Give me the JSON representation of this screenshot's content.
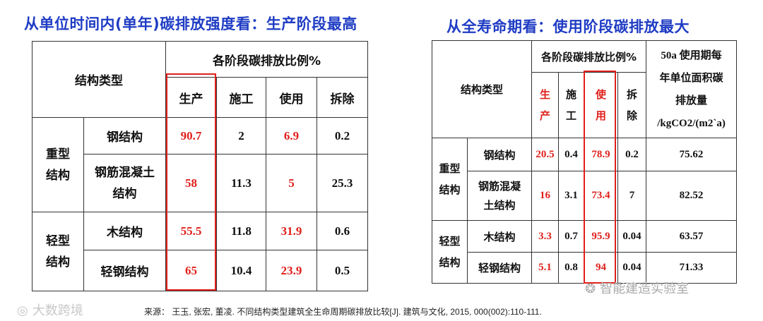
{
  "title_left": "从单位时间内(单年)碳排放强度看：生产阶段最高",
  "title_right": "从全寿命期看：使用阶段碳排放最大",
  "left_table": {
    "type_header": "结构类型",
    "ratio_header": "各阶段碳排放比例%",
    "stages": [
      "生产",
      "施工",
      "使用",
      "拆除"
    ],
    "groups": [
      {
        "name_line1": "重型",
        "name_line2": "结构"
      },
      {
        "name_line1": "轻型",
        "name_line2": "结构"
      }
    ],
    "rows": [
      {
        "type": "钢结构",
        "values": [
          "90.7",
          "2",
          "6.9",
          "0.2"
        ]
      },
      {
        "type_line1": "钢筋混凝土",
        "type_line2": "结构",
        "values": [
          "58",
          "11.3",
          "5",
          "25.3"
        ]
      },
      {
        "type": "木结构",
        "values": [
          "55.5",
          "11.8",
          "31.9",
          "0.6"
        ]
      },
      {
        "type": "轻钢结构",
        "values": [
          "65",
          "10.4",
          "23.9",
          "0.5"
        ]
      }
    ]
  },
  "right_table": {
    "type_header": "结构类型",
    "ratio_header": "各阶段碳排放比例%",
    "stages": [
      {
        "l1": "生",
        "l2": "产"
      },
      {
        "l1": "施",
        "l2": "工"
      },
      {
        "l1": "使",
        "l2": "用"
      },
      {
        "l1": "拆",
        "l2": "除"
      }
    ],
    "annual_header_l1": "50a 使用期每",
    "annual_header_l2": "年单位面积碳",
    "annual_header_l3": "排放量",
    "annual_header_l4": "/kgCO2/(m2`a)",
    "groups": [
      {
        "name_line1": "重型",
        "name_line2": "结构"
      },
      {
        "name_line1": "轻型",
        "name_line2": "结构"
      }
    ],
    "rows": [
      {
        "type": "钢结构",
        "values": [
          "20.5",
          "0.4",
          "78.9",
          "0.2"
        ],
        "annual": "75.62"
      },
      {
        "type_line1": "钢筋混凝",
        "type_line2": "土结构",
        "values": [
          "16",
          "3.1",
          "73.4",
          "7"
        ],
        "annual": "82.52"
      },
      {
        "type": "木结构",
        "values": [
          "3.3",
          "0.7",
          "95.9",
          "0.04"
        ],
        "annual": "63.57"
      },
      {
        "type": "轻钢结构",
        "values": [
          "5.1",
          "0.8",
          "94",
          "0.04"
        ],
        "annual": "71.33"
      }
    ]
  },
  "source": "来源： 王玉, 张宏, 董凌. 不同结构类型建筑全生命周期碳排放比较[J]. 建筑与文化, 2015, 000(002):110-111.",
  "watermark_left": "大数跨境",
  "watermark_right": "智能建造实验室",
  "colors": {
    "title": "#1f3cc4",
    "highlight": "#e0201b",
    "border": "#333333"
  }
}
